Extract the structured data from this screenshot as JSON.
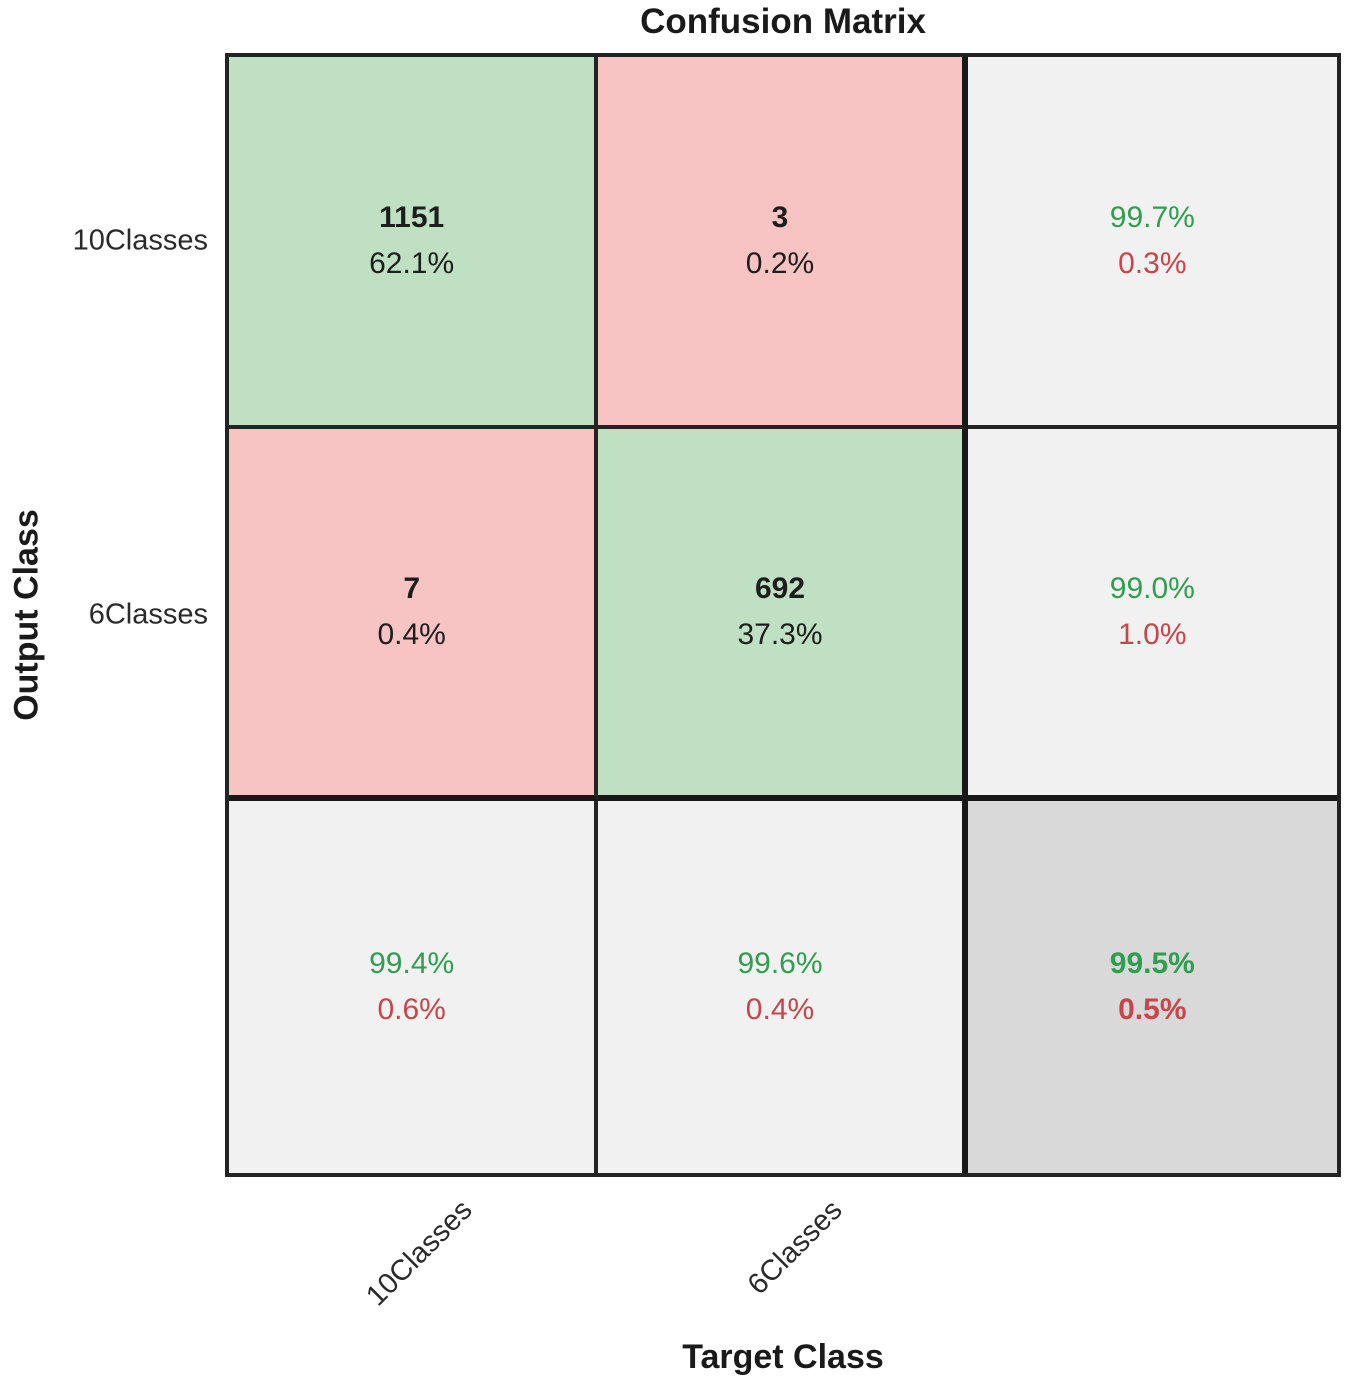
{
  "title": "Confusion Matrix",
  "axes": {
    "x_label": "Target Class",
    "y_label": "Output Class"
  },
  "row_labels": [
    "10Classes",
    "6Classes"
  ],
  "col_labels": [
    "10Classes",
    "6Classes"
  ],
  "colors": {
    "correct-bg": "#bfe0c2",
    "incorrect-bg": "#f7c4c3",
    "summary-bg": "#f1f1f1",
    "total-bg": "#d9d9d9",
    "good-text": "#2f9e4e",
    "bad-text": "#c84549",
    "dark-text": "#1d1d1d",
    "grid-line": "#232323"
  },
  "chart_data": {
    "type": "heatmap",
    "title": "Confusion Matrix",
    "xlabel": "Target Class",
    "ylabel": "Output Class",
    "classes": [
      "10Classes",
      "6Classes"
    ],
    "matrix_counts": [
      [
        1151,
        3
      ],
      [
        7,
        692
      ]
    ],
    "matrix_pct_of_total": [
      [
        "62.1%",
        "0.2%"
      ],
      [
        "0.4%",
        "37.3%"
      ]
    ],
    "row_precision": [
      {
        "good": "99.7%",
        "bad": "0.3%"
      },
      {
        "good": "99.0%",
        "bad": "1.0%"
      }
    ],
    "col_recall": [
      {
        "good": "99.4%",
        "bad": "0.6%"
      },
      {
        "good": "99.6%",
        "bad": "0.4%"
      }
    ],
    "overall_accuracy": {
      "good": "99.5%",
      "bad": "0.5%"
    },
    "cells": [
      [
        {
          "line1": "1151",
          "line2": "62.1%"
        },
        {
          "line1": "3",
          "line2": "0.2%"
        },
        {
          "line1": "99.7%",
          "line2": "0.3%"
        }
      ],
      [
        {
          "line1": "7",
          "line2": "0.4%"
        },
        {
          "line1": "692",
          "line2": "37.3%"
        },
        {
          "line1": "99.0%",
          "line2": "1.0%"
        }
      ],
      [
        {
          "line1": "99.4%",
          "line2": "0.6%"
        },
        {
          "line1": "99.6%",
          "line2": "0.4%"
        },
        {
          "line1": "99.5%",
          "line2": "0.5%"
        }
      ]
    ]
  }
}
